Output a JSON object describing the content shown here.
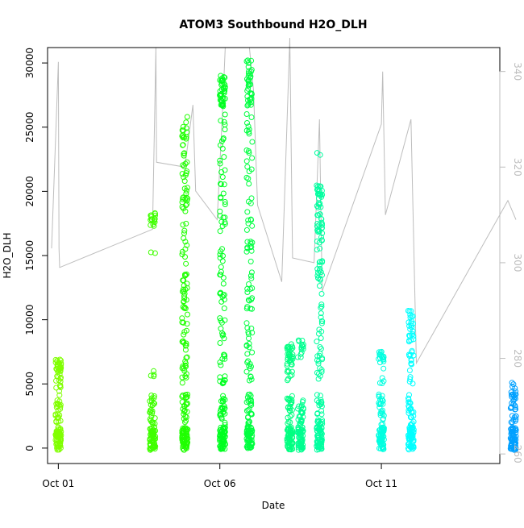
{
  "chart_data": {
    "type": "scatter",
    "title": "ATOM3 Southbound H2O_DLH",
    "xlabel": "Date",
    "ylabel": "H2O_DLH",
    "x_axis": {
      "type": "date",
      "min": "2016-09-30T16:00",
      "max": "2016-10-14T16:00",
      "ticks": [
        {
          "date": "2016-10-01T00:00",
          "label": "Oct 01"
        },
        {
          "date": "2016-10-06T00:00",
          "label": "Oct 06"
        },
        {
          "date": "2016-10-11T00:00",
          "label": "Oct 11"
        }
      ]
    },
    "y_axis": {
      "min": -1200,
      "max": 31200,
      "ticks": [
        0,
        5000,
        10000,
        15000,
        20000,
        25000,
        30000
      ]
    },
    "y2_axis": {
      "min": 258,
      "max": 345,
      "ticks": [
        260,
        280,
        300,
        320,
        340
      ],
      "color": "#bdbdbd"
    },
    "grid": false,
    "legend": "none",
    "point_clusters": [
      {
        "date": "2016-10-01T00:00",
        "color": "#80ff00",
        "max": 6900,
        "upper": [
          [
            5900,
            6900,
            28
          ],
          [
            4400,
            5900,
            14
          ]
        ]
      },
      {
        "date": "2016-10-03T22:00",
        "color": "#40ff00",
        "max": 18300,
        "upper": [
          [
            17300,
            18300,
            16
          ],
          [
            15100,
            15500,
            2
          ],
          [
            5000,
            6500,
            4
          ]
        ]
      },
      {
        "date": "2016-10-04T22:00",
        "color": "#20ff00",
        "max": 25800,
        "upper": [
          [
            12000,
            25800,
            70
          ],
          [
            5000,
            12000,
            40
          ]
        ]
      },
      {
        "date": "2016-10-06T02:00",
        "color": "#00ff20",
        "max": 29000,
        "upper": [
          [
            26500,
            29000,
            40
          ],
          [
            14000,
            26500,
            40
          ],
          [
            5000,
            14000,
            40
          ]
        ]
      },
      {
        "date": "2016-10-06T22:00",
        "color": "#00ff40",
        "max": 30200,
        "upper": [
          [
            26000,
            30200,
            40
          ],
          [
            14000,
            26000,
            40
          ],
          [
            5000,
            14000,
            40
          ]
        ]
      },
      {
        "date": "2016-10-08T04:00",
        "color": "#00ff80",
        "max": 8100,
        "upper": [
          [
            6500,
            8100,
            30
          ],
          [
            5000,
            6500,
            10
          ]
        ]
      },
      {
        "date": "2016-10-08T12:00",
        "color": "#00ff90",
        "max": 8400,
        "upper": [
          [
            7000,
            8400,
            14
          ]
        ]
      },
      {
        "date": "2016-10-09T02:00",
        "color": "#00ffa0",
        "max": 23000,
        "upper": [
          [
            17000,
            20500,
            40
          ],
          [
            12000,
            17000,
            30
          ],
          [
            5000,
            12000,
            30
          ],
          [
            22800,
            23000,
            1
          ]
        ]
      },
      {
        "date": "2016-10-11T00:00",
        "color": "#00ffe0",
        "max": 7500,
        "upper": [
          [
            7000,
            7500,
            10
          ],
          [
            5000,
            7000,
            10
          ]
        ]
      },
      {
        "date": "2016-10-11T22:00",
        "color": "#00ffff",
        "max": 10700,
        "upper": [
          [
            7000,
            10700,
            30
          ],
          [
            5000,
            7000,
            10
          ]
        ]
      },
      {
        "date": "2016-10-15T02:00",
        "color": "#00a0ff",
        "max": 5100,
        "upper": [
          [
            4000,
            5100,
            10
          ]
        ]
      }
    ],
    "secondary_line": {
      "color": "#bdbdbd",
      "points": [
        [
          "2016-09-30T19:00",
          303
        ],
        [
          "2016-10-01T00:00",
          342
        ],
        [
          "2016-10-01T00:30",
          303
        ],
        [
          "2016-10-01T01:00",
          299
        ],
        [
          "2016-10-03T22:00",
          307
        ],
        [
          "2016-10-04T00:30",
          345
        ],
        [
          "2016-10-04T01:00",
          321
        ],
        [
          "2016-10-04T22:00",
          320
        ],
        [
          "2016-10-05T04:00",
          333
        ],
        [
          "2016-10-05T06:00",
          315
        ],
        [
          "2016-10-05T22:00",
          309
        ],
        [
          "2016-10-06T02:00",
          332
        ],
        [
          "2016-10-06T04:00",
          345
        ],
        [
          "2016-10-06T22:00",
          345
        ],
        [
          "2016-10-07T01:00",
          336
        ],
        [
          "2016-10-07T04:00",
          312
        ],
        [
          "2016-10-07T22:00",
          296
        ],
        [
          "2016-10-08T04:00",
          347
        ],
        [
          "2016-10-08T06:00",
          301
        ],
        [
          "2016-10-08T22:00",
          300
        ],
        [
          "2016-10-09T02:00",
          330
        ],
        [
          "2016-10-09T04:00",
          294
        ],
        [
          "2016-10-11T00:00",
          329
        ],
        [
          "2016-10-11T01:00",
          340
        ],
        [
          "2016-10-11T03:00",
          310
        ],
        [
          "2016-10-11T22:00",
          330
        ],
        [
          "2016-10-12T02:00",
          279
        ],
        [
          "2016-10-14T22:00",
          313
        ],
        [
          "2016-10-15T04:00",
          309
        ]
      ]
    }
  }
}
